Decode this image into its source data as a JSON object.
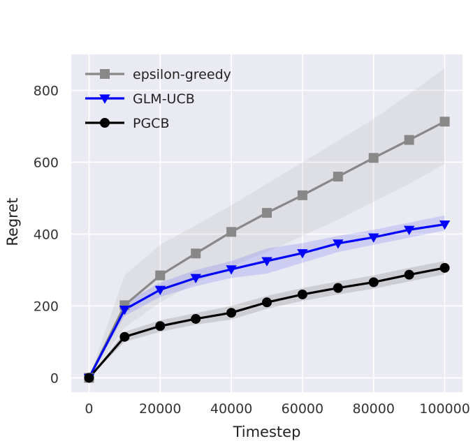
{
  "chart_data": {
    "type": "line",
    "title": "",
    "xlabel": "Timestep",
    "ylabel": "Regret",
    "xlim": [
      -5000,
      105000
    ],
    "ylim": [
      -40,
      900
    ],
    "grid": true,
    "legend_position": "top-left",
    "xticks": [
      0,
      20000,
      40000,
      60000,
      80000,
      100000
    ],
    "xtick_labels": [
      "0",
      "20000",
      "40000",
      "60000",
      "80000",
      "100000"
    ],
    "yticks": [
      0,
      200,
      400,
      600,
      800
    ],
    "ytick_labels": [
      "0",
      "200",
      "400",
      "600",
      "800"
    ],
    "x": [
      0,
      10000,
      20000,
      30000,
      40000,
      50000,
      60000,
      70000,
      80000,
      90000,
      100000
    ],
    "series": [
      {
        "name": "epsilon-greedy",
        "color": "#888888",
        "marker": "square",
        "values": [
          0,
          202,
          285,
          346,
          406,
          459,
          508,
          560,
          612,
          662,
          713
        ],
        "lower": [
          0,
          140,
          210,
          265,
          310,
          350,
          395,
          440,
          490,
          540,
          595
        ],
        "upper": [
          0,
          285,
          370,
          425,
          480,
          540,
          600,
          660,
          720,
          790,
          862
        ]
      },
      {
        "name": "GLM-UCB",
        "color": "#0000ff",
        "marker": "triangle-down",
        "values": [
          0,
          190,
          245,
          278,
          302,
          325,
          347,
          374,
          391,
          412,
          427
        ],
        "lower": [
          0,
          172,
          225,
          255,
          278,
          290,
          320,
          350,
          370,
          390,
          410
        ],
        "upper": [
          0,
          208,
          265,
          300,
          325,
          360,
          375,
          395,
          412,
          432,
          452
        ]
      },
      {
        "name": "PGCB",
        "color": "#000000",
        "marker": "circle",
        "values": [
          0,
          114,
          144,
          164,
          181,
          210,
          232,
          250,
          266,
          287,
          306
        ],
        "lower": [
          0,
          100,
          128,
          148,
          162,
          192,
          214,
          232,
          248,
          268,
          288
        ],
        "upper": [
          0,
          128,
          160,
          180,
          200,
          228,
          250,
          268,
          285,
          306,
          325
        ]
      }
    ]
  }
}
